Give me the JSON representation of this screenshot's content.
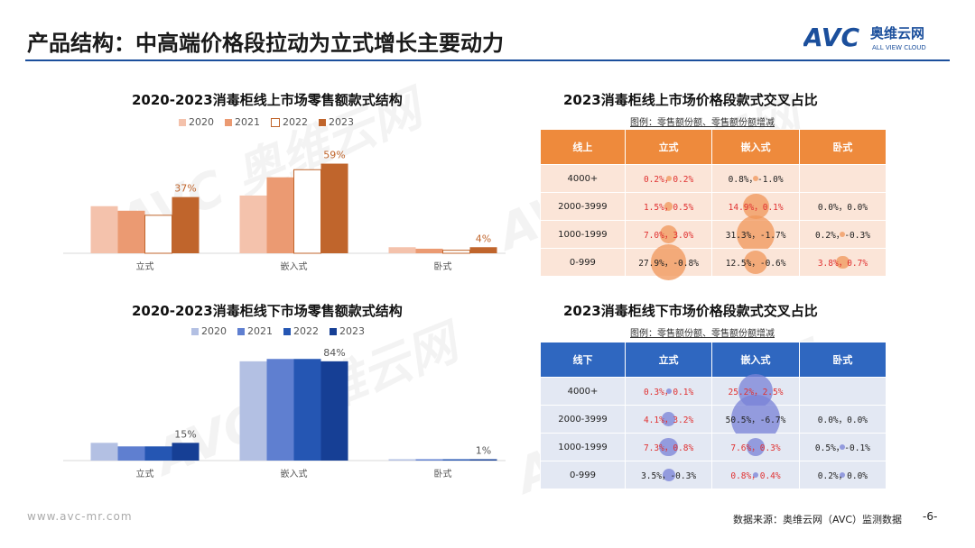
{
  "page": {
    "title": "产品结构：中高端价格段拉动为立式增长主要动力",
    "logo_text": "AVC",
    "logo_cn": "奥维云网",
    "logo_en": "ALL VIEW CLOUD",
    "footer_url": "www.avc-mr.com",
    "footer_source": "数据来源：奥维云网（AVC）监测数据",
    "page_number": "-6-",
    "watermark": "AVC 奥维云网"
  },
  "colors": {
    "online": [
      "#f4c2ac",
      "#eb9a72",
      "#ffffff",
      "#c0652c"
    ],
    "online_2022_border": "#c0652c",
    "offline": [
      "#b3c0e3",
      "#5f7fd0",
      "#2556b3",
      "#163f95"
    ],
    "online_header": "#ee8a3c",
    "offline_header": "#2f67c0",
    "online_row": "#fbe5d8",
    "offline_row": "#e3e8f3",
    "online_bubble": "rgba(240,150,90,0.75)",
    "offline_bubble": "rgba(120,130,215,0.75)"
  },
  "chart_data": [
    {
      "type": "bar",
      "title": "2020-2023消毒柜线上市场零售额款式结构",
      "categories": [
        "立式",
        "嵌入式",
        "卧式"
      ],
      "series": [
        {
          "name": "2020",
          "values": [
            0.31,
            0.38,
            0.04
          ]
        },
        {
          "name": "2021",
          "values": [
            0.28,
            0.5,
            0.03
          ]
        },
        {
          "name": "2022",
          "values": [
            0.25,
            0.55,
            0.02
          ]
        },
        {
          "name": "2023",
          "values": [
            0.37,
            0.59,
            0.04
          ]
        }
      ],
      "data_labels": {
        "2023": [
          "37%",
          "59%",
          "4%"
        ]
      },
      "ylim": [
        0,
        0.7
      ]
    },
    {
      "type": "bar",
      "title": "2020-2023消毒柜线下市场零售额款式结构",
      "categories": [
        "立式",
        "嵌入式",
        "卧式"
      ],
      "series": [
        {
          "name": "2020",
          "values": [
            0.15,
            0.84,
            0.01
          ]
        },
        {
          "name": "2021",
          "values": [
            0.12,
            0.86,
            0.01
          ]
        },
        {
          "name": "2022",
          "values": [
            0.12,
            0.86,
            0.01
          ]
        },
        {
          "name": "2023",
          "values": [
            0.15,
            0.84,
            0.01
          ]
        }
      ],
      "data_labels": {
        "2023": [
          "15%",
          "84%",
          "1%"
        ]
      },
      "ylim": [
        0,
        0.9
      ]
    },
    {
      "type": "table",
      "title": "2023消毒柜线上市场价格段款式交叉占比",
      "note": "图例：零售额份额、零售额份额增减",
      "columns": [
        "线上",
        "立式",
        "嵌入式",
        "卧式"
      ],
      "rows": [
        {
          "label": "4000+",
          "cells": [
            {
              "text": "0.2%，0.2%",
              "share": 0.2,
              "red": true
            },
            {
              "text": "0.8%，-1.0%",
              "share": 0.8,
              "red": false
            },
            {
              "text": "",
              "share": 0
            }
          ]
        },
        {
          "label": "2000-3999",
          "cells": [
            {
              "text": "1.5%，0.5%",
              "share": 1.5,
              "red": true
            },
            {
              "text": "14.9%，0.1%",
              "share": 14.9,
              "red": true
            },
            {
              "text": "0.0%，0.0%",
              "share": 0,
              "red": false
            }
          ]
        },
        {
          "label": "1000-1999",
          "cells": [
            {
              "text": "7.0%，3.0%",
              "share": 7.0,
              "red": true
            },
            {
              "text": "31.3%，-1.7%",
              "share": 31.3,
              "red": false
            },
            {
              "text": "0.2%，-0.3%",
              "share": 0.2,
              "red": false
            }
          ]
        },
        {
          "label": "0-999",
          "cells": [
            {
              "text": "27.9%，-0.8%",
              "share": 27.9,
              "red": false
            },
            {
              "text": "12.5%，-0.6%",
              "share": 12.5,
              "red": false
            },
            {
              "text": "3.8%，0.7%",
              "share": 3.8,
              "red": true
            }
          ]
        }
      ]
    },
    {
      "type": "table",
      "title": "2023消毒柜线下市场价格段款式交叉占比",
      "note": "图例：零售额份额、零售额份额增减",
      "columns": [
        "线下",
        "立式",
        "嵌入式",
        "卧式"
      ],
      "rows": [
        {
          "label": "4000+",
          "cells": [
            {
              "text": "0.3%，0.1%",
              "share": 0.3,
              "red": true
            },
            {
              "text": "25.2%，2.5%",
              "share": 25.2,
              "red": true
            },
            {
              "text": "",
              "share": 0
            }
          ]
        },
        {
          "label": "2000-3999",
          "cells": [
            {
              "text": "4.1%，3.2%",
              "share": 4.1,
              "red": true
            },
            {
              "text": "50.5%，-6.7%",
              "share": 50.5,
              "red": false
            },
            {
              "text": "0.0%，0.0%",
              "share": 0,
              "red": false
            }
          ]
        },
        {
          "label": "1000-1999",
          "cells": [
            {
              "text": "7.3%，0.8%",
              "share": 7.3,
              "red": true
            },
            {
              "text": "7.6%，0.3%",
              "share": 7.6,
              "red": true
            },
            {
              "text": "0.5%，-0.1%",
              "share": 0.5,
              "red": false
            }
          ]
        },
        {
          "label": "0-999",
          "cells": [
            {
              "text": "3.5%，-0.3%",
              "share": 3.5,
              "red": false
            },
            {
              "text": "0.8%，0.4%",
              "share": 0.8,
              "red": true
            },
            {
              "text": "0.2%，0.0%",
              "share": 0.2,
              "red": false
            }
          ]
        }
      ]
    }
  ]
}
